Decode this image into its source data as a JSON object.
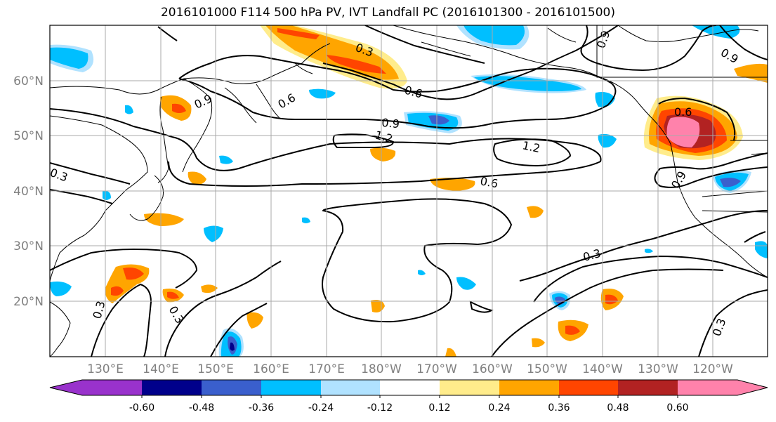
{
  "title": "2016101000 F114 500 hPa PV, IVT Landfall PC (2016101300 - 2016101500)",
  "lat_labels": [
    "60°N",
    "50°N",
    "40°N",
    "30°N",
    "20°N"
  ],
  "lon_labels": [
    "130°E",
    "140°E",
    "150°E",
    "160°E",
    "170°E",
    "180°W",
    "170°W",
    "160°W",
    "150°W",
    "140°W",
    "130°W",
    "120°W"
  ],
  "colorbar": {
    "colors": [
      "#9932cc",
      "#00008b",
      "#3a5fcd",
      "#00bfff",
      "#b0e2ff",
      "#ffffff",
      "#ffec8b",
      "#ffa500",
      "#ff4500",
      "#b22222",
      "#ff82ab"
    ],
    "tick_labels": [
      "-0.60",
      "-0.48",
      "-0.36",
      "-0.24",
      "-0.12",
      "0.12",
      "0.24",
      "0.36",
      "0.48",
      "0.60"
    ]
  },
  "contour_labels": [
    "0.3",
    "0.6",
    "0.9",
    "1.2",
    "0.6",
    "0.9",
    "1.2",
    "0.6",
    "0.3",
    "0.9",
    "0.6",
    "0.9",
    "0.3",
    "0.3",
    "0.3",
    "0.3",
    "0.9"
  ],
  "map_colors": {
    "grid": "#a9a9a9",
    "coast": "#000000",
    "contour": "#000000"
  }
}
